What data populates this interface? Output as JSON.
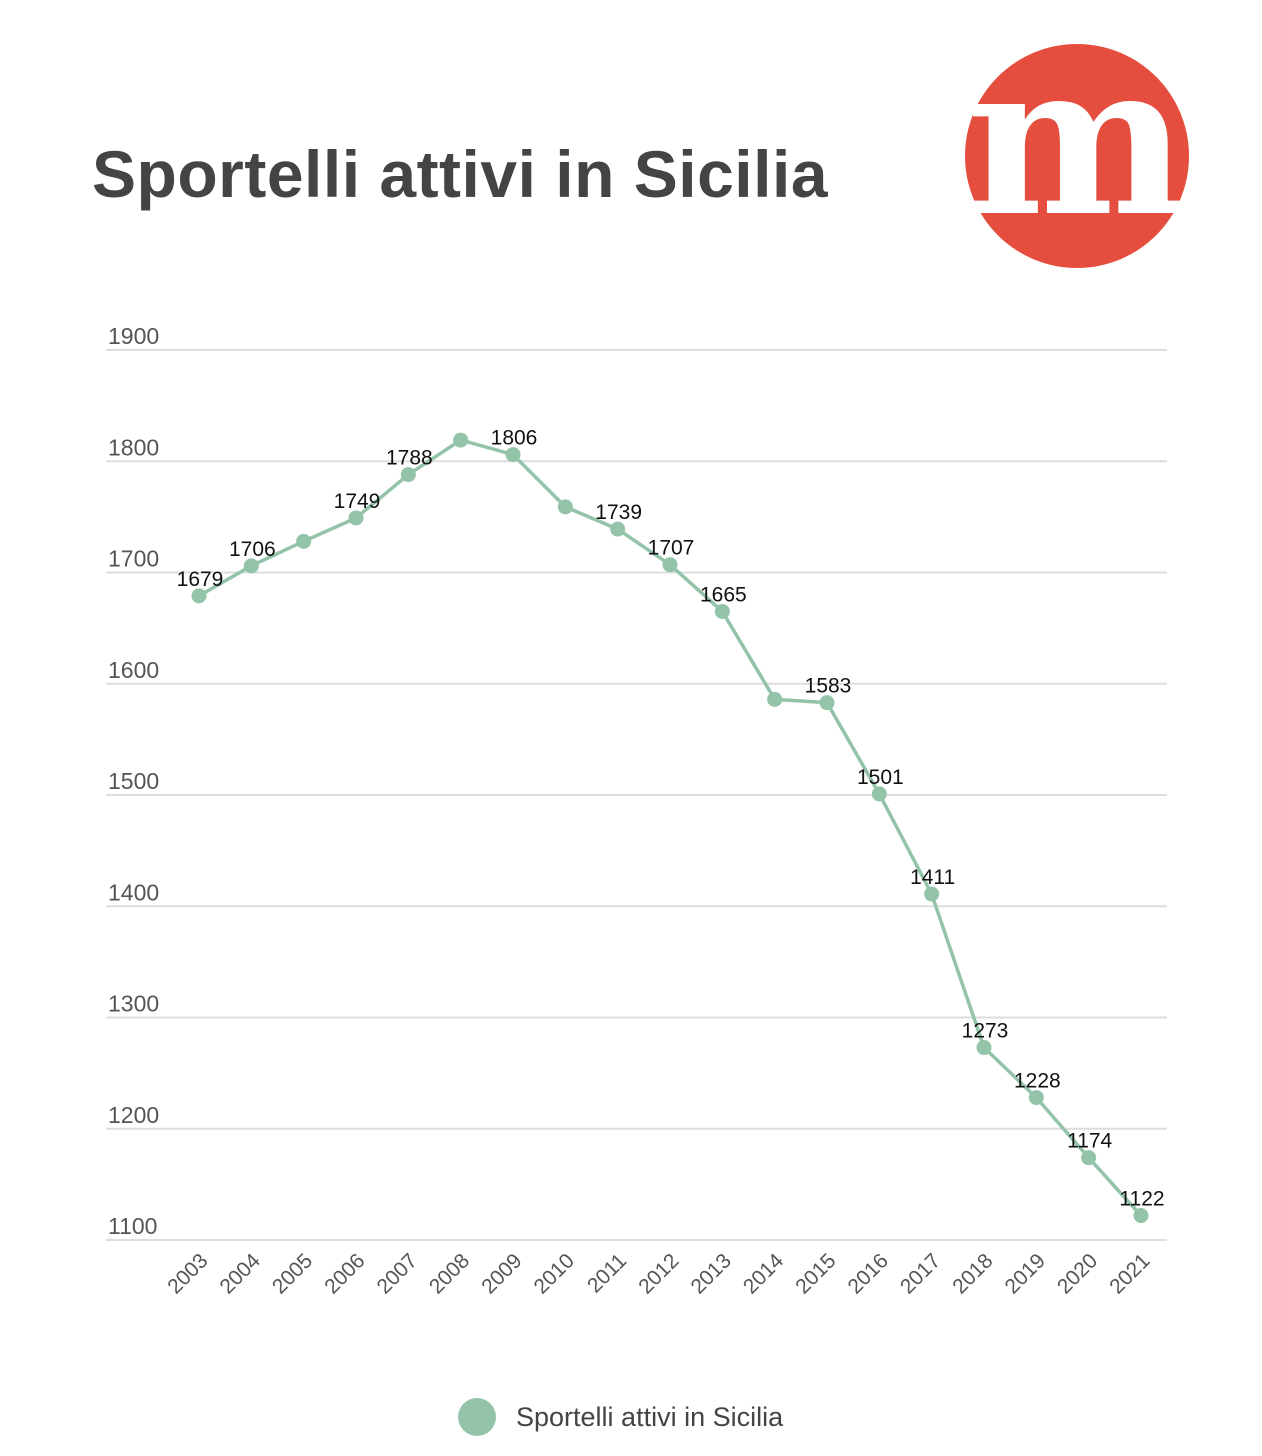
{
  "chart_data": {
    "type": "line",
    "title": "Sportelli attivi in Sicilia",
    "x": [
      "2003",
      "2004",
      "2005",
      "2006",
      "2007",
      "2008",
      "2009",
      "2010",
      "2011",
      "2012",
      "2013",
      "2014",
      "2015",
      "2016",
      "2017",
      "2018",
      "2019",
      "2020",
      "2021"
    ],
    "series": [
      {
        "name": "Sportelli attivi in Sicilia",
        "values": [
          1679,
          1706,
          1728,
          1749,
          1788,
          1819,
          1806,
          1759,
          1739,
          1707,
          1665,
          1586,
          1583,
          1501,
          1411,
          1273,
          1228,
          1174,
          1122
        ],
        "labels": [
          "1679",
          "1706",
          "",
          "1749",
          "1788",
          "",
          "1806",
          "",
          "1739",
          "1707",
          "1665",
          "",
          "1583",
          "1501",
          "1411",
          "1273",
          "1228",
          "1174",
          "1122"
        ]
      }
    ],
    "yticks": [
      "1100",
      "1200",
      "1300",
      "1400",
      "1500",
      "1600",
      "1700",
      "1800",
      "1900"
    ],
    "ylim": [
      1100,
      1900
    ],
    "grid": true,
    "legend_position": "bottom",
    "colors": {
      "series": "#93c3a8",
      "grid": "#dddddd",
      "title": "#444444",
      "logo": "#e54e3e"
    }
  },
  "logo": {
    "letter": "m"
  }
}
